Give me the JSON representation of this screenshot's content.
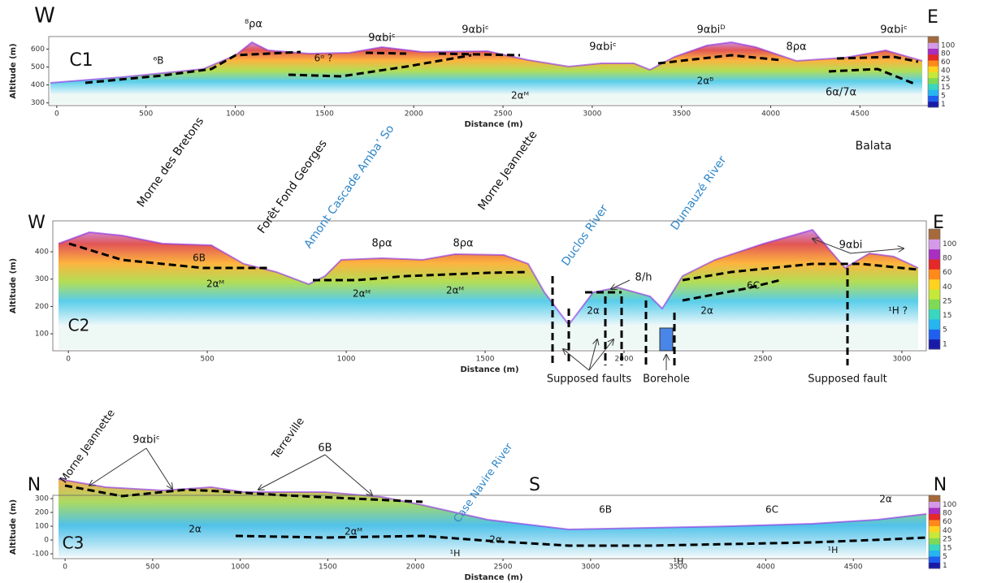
{
  "panels": [
    {
      "x_label": "Distance (m)",
      "y_label": "Altitude (m)",
      "xlim": [
        -45,
        4940
      ],
      "ylim": [
        285,
        670
      ],
      "xticks": [
        0,
        500,
        1000,
        1500,
        2000,
        2500,
        3000,
        3500,
        4000,
        4500
      ],
      "yticks": [
        300,
        400,
        500,
        600
      ],
      "annotations": [
        "W",
        "E",
        "C1",
        "⁸ρα",
        "⁶B",
        "6ᵅ ?",
        "9αbiᶜ",
        "9αbiᶜ",
        "2αᴹ",
        "9αbiᶜ",
        "9αbiᴰ",
        "8ρα",
        "2αᴮ",
        "6α/7α",
        "9αbiᶜ"
      ]
    },
    {
      "x_label": "Distance (m)",
      "y_label": "Altitude (m)",
      "xlim": [
        -56,
        3088
      ],
      "ylim": [
        38,
        513
      ],
      "xticks": [
        0,
        500,
        1000,
        1500,
        2000,
        2500,
        3000
      ],
      "yticks": [
        100,
        200,
        300,
        400
      ],
      "annotations": [
        "Morne des Bretons",
        "Forêt Fond Georges",
        "Amont Cascade Amba’ So",
        "Morne Jeannette",
        "Duclos River",
        "Dumauzé River",
        "Balata",
        "W",
        "E",
        "C2",
        "6B",
        "2αᴹ",
        "2αᴹ",
        "8ρα",
        "8ρα",
        "2αᴹ",
        "8/h",
        "2α",
        "2α",
        "6C",
        "9αbi",
        "¹H ?",
        "Supposed faults",
        "Borehole",
        "Supposed fault"
      ]
    },
    {
      "x_label": "Distance (m)",
      "y_label": "Altitude (m)",
      "xlim": [
        -70,
        4963
      ],
      "ylim": [
        -135,
        324
      ],
      "xticks": [
        0,
        500,
        1000,
        1500,
        2000,
        2500,
        3000,
        3500,
        4000,
        4500
      ],
      "yticks": [
        -100,
        0,
        100,
        200,
        300
      ],
      "annotations": [
        "N",
        "N",
        "S",
        "C3",
        "Morne Jeannette",
        "9αbiᶜ",
        "Terreville",
        "6B",
        "2α",
        "2αᴹ",
        "2α",
        "¹H",
        "Case Navire River",
        "6B",
        "¹H",
        "6C",
        "¹H",
        "2α"
      ]
    }
  ],
  "colorbar_ticks": [
    1,
    5,
    15,
    25,
    40,
    60,
    80,
    100
  ]
}
